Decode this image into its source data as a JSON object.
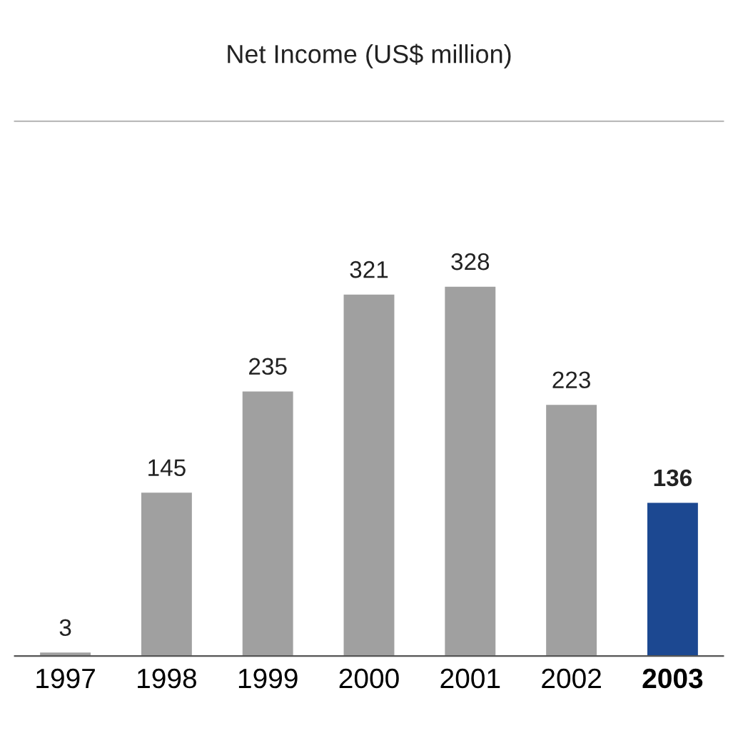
{
  "chart_data": {
    "type": "bar",
    "title": "Net Income (US$ million)",
    "categories": [
      "1997",
      "1998",
      "1999",
      "2000",
      "2001",
      "2002",
      "2003"
    ],
    "values": [
      3,
      145,
      235,
      321,
      328,
      223,
      136
    ],
    "colors": [
      "#a0a0a0",
      "#a0a0a0",
      "#a0a0a0",
      "#a0a0a0",
      "#a0a0a0",
      "#a0a0a0",
      "#1c4891"
    ],
    "ylim": [
      0,
      475
    ],
    "data_labels": true
  }
}
